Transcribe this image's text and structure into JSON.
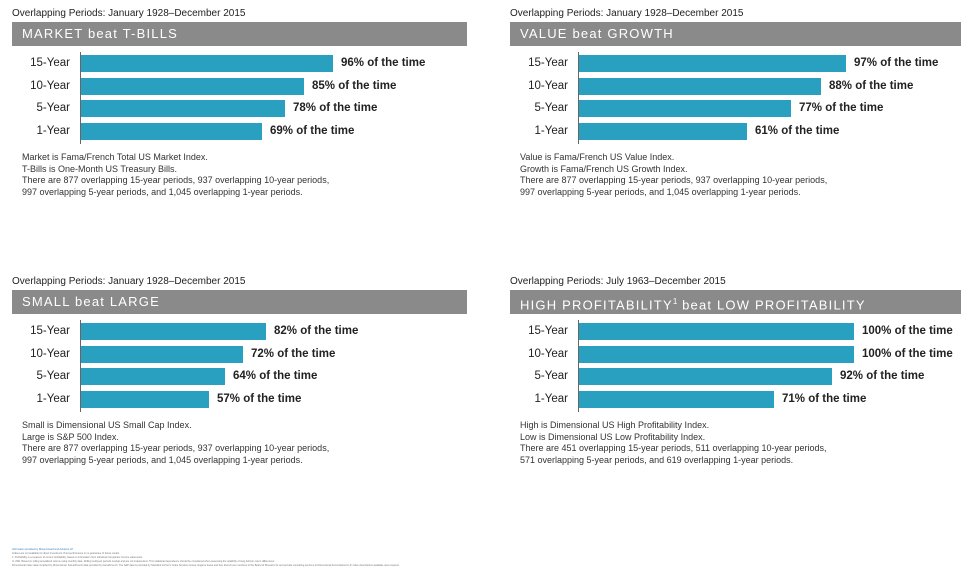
{
  "chart_data": [
    {
      "type": "bar",
      "orientation": "horizontal",
      "period": "Overlapping Periods: January 1928–December 2015",
      "title": "MARKET beat T-BILLS",
      "title_sup": "",
      "categories": [
        "15-Year",
        "10-Year",
        "5-Year",
        "1-Year"
      ],
      "values": [
        96,
        85,
        78,
        69
      ],
      "value_labels": [
        "96% of the time",
        "85% of the time",
        "78% of the time",
        "69% of the time"
      ],
      "xlim": [
        0,
        100
      ],
      "bar_color": "#2aa0c0",
      "notes": [
        "Market is Fama/French Total US Market Index.",
        "T-Bills is One-Month US Treasury Bills.",
        "There are 877 overlapping 15-year periods, 937 overlapping 10-year periods,",
        "997 overlapping 5-year periods, and 1,045 overlapping 1-year periods."
      ]
    },
    {
      "type": "bar",
      "orientation": "horizontal",
      "period": "Overlapping Periods: January 1928–December 2015",
      "title": "VALUE beat GROWTH",
      "title_sup": "",
      "categories": [
        "15-Year",
        "10-Year",
        "5-Year",
        "1-Year"
      ],
      "values": [
        97,
        88,
        77,
        61
      ],
      "value_labels": [
        "97% of the time",
        "88% of the time",
        "77% of the time",
        "61% of the time"
      ],
      "xlim": [
        0,
        100
      ],
      "bar_color": "#2aa0c0",
      "notes": [
        "Value is Fama/French US Value Index.",
        "Growth is Fama/French US Growth Index.",
        "There are 877 overlapping 15-year periods, 937 overlapping 10-year periods,",
        "997 overlapping 5-year periods, and 1,045 overlapping 1-year periods."
      ]
    },
    {
      "type": "bar",
      "orientation": "horizontal",
      "period": "Overlapping Periods: January 1928–December 2015",
      "title": "SMALL beat LARGE",
      "title_sup": "",
      "categories": [
        "15-Year",
        "10-Year",
        "5-Year",
        "1-Year"
      ],
      "values": [
        82,
        72,
        64,
        57
      ],
      "value_labels": [
        "82% of the time",
        "72% of the time",
        "64% of the time",
        "57% of the time"
      ],
      "xlim": [
        0,
        100
      ],
      "bar_color": "#2aa0c0",
      "notes": [
        "Small is Dimensional US Small Cap Index.",
        "Large is S&P 500 Index.",
        "There are 877 overlapping 15-year periods, 937 overlapping 10-year periods,",
        "997 overlapping 5-year periods, and 1,045 overlapping 1-year periods."
      ]
    },
    {
      "type": "bar",
      "orientation": "horizontal",
      "period": "Overlapping Periods: July 1963–December 2015",
      "title": "HIGH PROFITABILITY",
      "title_sup": "1",
      "title_rest": " beat LOW PROFITABILITY",
      "categories": [
        "15-Year",
        "10-Year",
        "5-Year",
        "1-Year"
      ],
      "values": [
        100,
        100,
        92,
        71
      ],
      "value_labels": [
        "100% of the time",
        "100% of the time",
        "92% of the time",
        "71% of the time"
      ],
      "xlim": [
        0,
        100
      ],
      "bar_color": "#2aa0c0",
      "notes": [
        "High is Dimensional US High Profitability Index.",
        "Low is Dimensional US Low Profitability Index.",
        "There are 451 overlapping 15-year periods, 511 overlapping 10-year periods,",
        "571 overlapping 5-year periods, and 619 overlapping 1-year periods."
      ]
    }
  ],
  "footnotes": [
    "Information provided by Dimensional Fund Advisors LP.",
    "Indices are not available for direct investment. Past performance is no guarantee of future results.",
    "1. Profitability is a measure of current profitability, based on information from individual companies' income statements.",
    "In USD. Based on rolling annualized returns using monthly data. Rolling multiyear periods overlap and are not independent. This statistical dependence should be considered when assessing the reliability of long-horizon return differences.",
    "Dimensional index data compiled by Dimensional. Fama/French data provided by Fama/French. The S&P data is provided by Standard & Poor's Index Services Group. Eugene Fama and Ken French are members of the Board of Directors for and provide consulting services to Dimensional Fund Advisors LP. Index descriptions available upon request."
  ]
}
